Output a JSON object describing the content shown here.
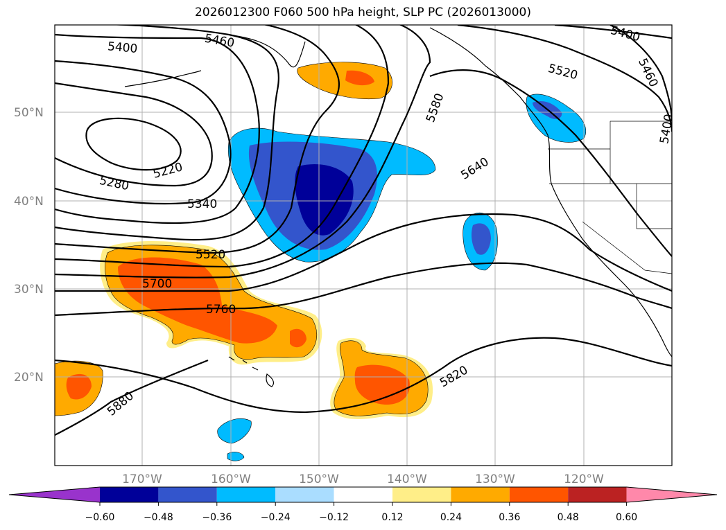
{
  "title": "2026012300 F060 500 hPa height, SLP PC (2026013000)",
  "map": {
    "lat_labels": [
      "50°N",
      "40°N",
      "30°N",
      "20°N"
    ],
    "lon_labels": [
      "170°W",
      "160°W",
      "150°W",
      "140°W",
      "130°W",
      "120°W"
    ],
    "contour_labels": [
      "5460",
      "5400",
      "5220",
      "5280",
      "5340",
      "5520",
      "5700",
      "5760",
      "5880",
      "5580",
      "5640",
      "5520",
      "5400",
      "5460",
      "5400",
      "5820"
    ]
  },
  "colorbar": {
    "colors": [
      "#9933cc",
      "#000099",
      "#3355cc",
      "#00bbff",
      "#aaddff",
      "#ffffff",
      "#ffee88",
      "#ffaa00",
      "#ff5500",
      "#bb2222",
      "#ff88aa"
    ],
    "tick_labels": [
      "−0.60",
      "−0.48",
      "−0.36",
      "−0.24",
      "−0.12",
      "0.12",
      "0.24",
      "0.36",
      "0.48",
      "0.60"
    ]
  },
  "chart_data": {
    "type": "heatmap",
    "title": "2026012300 F060 500 hPa height, SLP PC (2026013000)",
    "levels": [
      -0.6,
      -0.48,
      -0.36,
      -0.24,
      -0.12,
      0.12,
      0.24,
      0.36,
      0.48,
      0.6
    ],
    "contour_values": [
      5220,
      5280,
      5340,
      5400,
      5460,
      5520,
      5580,
      5640,
      5700,
      5760,
      5820,
      5880
    ],
    "lat_range": [
      10,
      60
    ],
    "lon_range": [
      -180,
      -110
    ]
  }
}
